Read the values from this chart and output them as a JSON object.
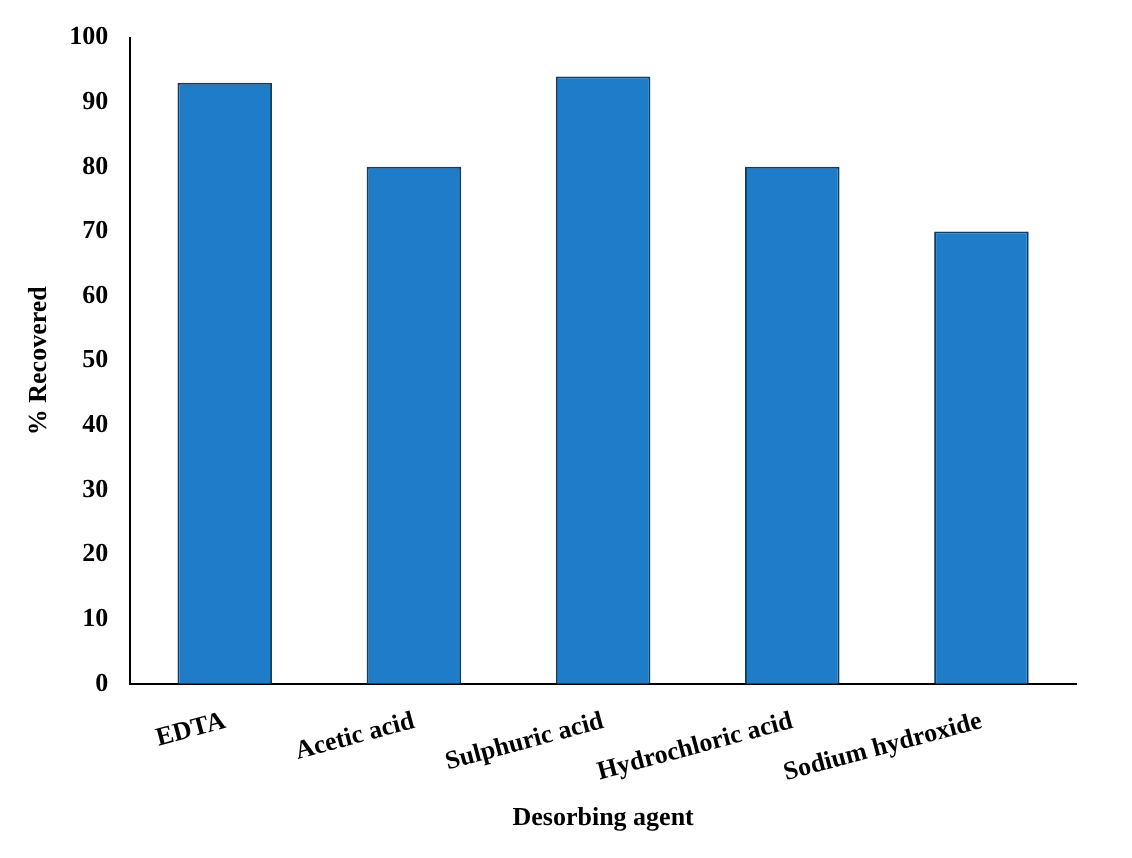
{
  "chart_data": {
    "type": "bar",
    "xlabel": "Desorbing agent",
    "ylabel": "% Recovered",
    "categories": [
      "EDTA",
      "Acetic acid",
      "Sulphuric acid",
      "Hydrochloric acid",
      "Sodium hydroxide"
    ],
    "values": [
      93,
      80,
      94,
      80,
      70
    ],
    "color": "#1f7cc8",
    "ylim": [
      0,
      100
    ],
    "yticks": [
      0,
      10,
      20,
      30,
      40,
      50,
      60,
      70,
      80,
      90,
      100
    ],
    "grid": false
  }
}
